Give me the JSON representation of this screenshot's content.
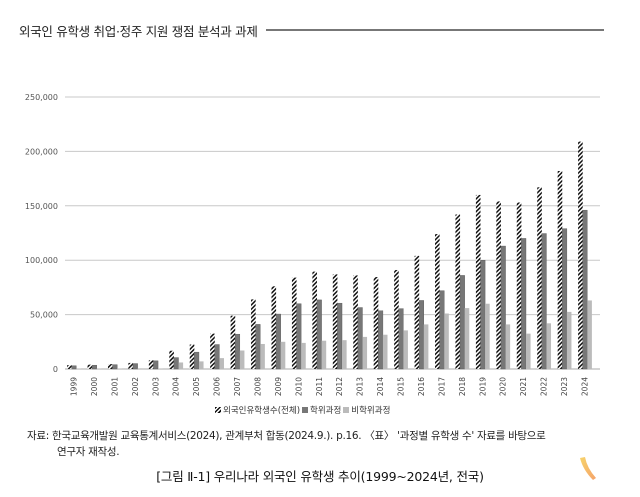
{
  "header": {
    "title": "외국인 유학생 취업·정주 지원 쟁점 분석과 과제"
  },
  "chart_data": {
    "type": "bar",
    "title": "",
    "xlabel": "",
    "ylabel": "",
    "ylim": [
      0,
      250000
    ],
    "yticks": [
      0,
      50000,
      100000,
      150000,
      200000,
      250000
    ],
    "ytick_labels": [
      "0",
      "50,000",
      "100,000",
      "150,000",
      "200,000",
      "250,000"
    ],
    "grid": true,
    "legend_position": "bottom",
    "categories": [
      "1999",
      "2000",
      "2001",
      "2002",
      "2003",
      "2004",
      "2005",
      "2006",
      "2007",
      "2008",
      "2009",
      "2010",
      "2011",
      "2012",
      "2013",
      "2014",
      "2015",
      "2016",
      "2017",
      "2018",
      "2019",
      "2020",
      "2021",
      "2022",
      "2023",
      "2024"
    ],
    "series": [
      {
        "name": "외국인유학생수(전체)",
        "pattern": "hatched",
        "color": "#111111",
        "values": [
          3500,
          4000,
          4500,
          5600,
          8000,
          16800,
          22500,
          32500,
          49000,
          64000,
          76000,
          84000,
          89500,
          87000,
          86000,
          84500,
          91000,
          104000,
          124000,
          142000,
          160000,
          154000,
          153000,
          167000,
          182000,
          209000
        ]
      },
      {
        "name": "학위과정",
        "pattern": "solid",
        "color": "#777777",
        "values": [
          3000,
          3500,
          4000,
          5000,
          7500,
          10500,
          15500,
          22500,
          32000,
          41000,
          50500,
          60000,
          63500,
          60500,
          56500,
          53500,
          55500,
          63000,
          72000,
          86000,
          100000,
          113000,
          120000,
          124500,
          129000,
          146000
        ]
      },
      {
        "name": "비학위과정",
        "pattern": "solid",
        "color": "#bbbbbb",
        "values": [
          500,
          500,
          500,
          600,
          500,
          6000,
          7000,
          10000,
          17000,
          23000,
          25000,
          24000,
          26000,
          26500,
          29500,
          31500,
          35500,
          41000,
          51000,
          56000,
          60000,
          41000,
          32500,
          42000,
          52500,
          63000
        ]
      }
    ]
  },
  "legend": {
    "items": [
      {
        "label": "외국인유학생수(전체)"
      },
      {
        "label": "학위과정"
      },
      {
        "label": "비학위과정"
      }
    ]
  },
  "source": {
    "line1": "자료: 한국교육개발원 교육통계서비스(2024), 관계부처 합동(2024.9.). p.16. 〈표〉 '과정별 유학생 수' 자료를 바탕으로",
    "line2": "연구자 재작성."
  },
  "caption": {
    "text": "[그림 Ⅱ-1] 우리나라 외국인 유학생 추이(1999~2024년, 전국)"
  },
  "colors": {
    "total": "#111111",
    "degree": "#777777",
    "nondegree": "#bbbbbb",
    "grid": "#c8c8c8",
    "deco_start": "#f7d36b",
    "deco_end": "#f5a36a"
  }
}
